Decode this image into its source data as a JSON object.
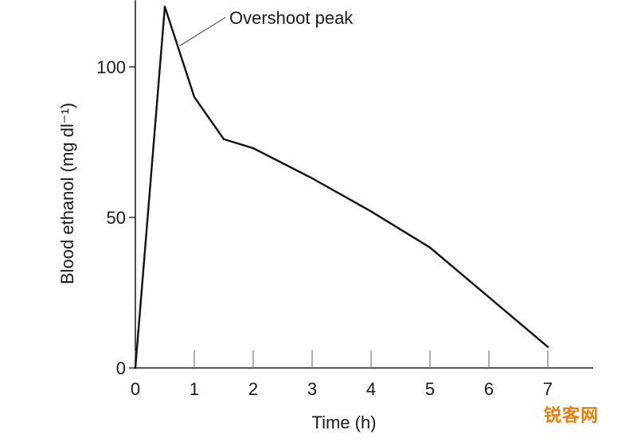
{
  "chart_data": {
    "type": "line",
    "title": "",
    "xlabel": "Time (h)",
    "ylabel": "Blood ethanol (mg dl⁻¹)",
    "xlim": [
      0,
      7.5
    ],
    "ylim": [
      0,
      120
    ],
    "xticks": [
      0,
      1,
      2,
      3,
      4,
      5,
      6,
      7
    ],
    "yticks": [
      0,
      50,
      100
    ],
    "grid": false,
    "series": [
      {
        "x": [
          0,
          0.5,
          1,
          1.5,
          2,
          3,
          4,
          5,
          7
        ],
        "y": [
          0,
          120,
          90,
          76,
          73,
          63,
          52,
          40,
          7
        ]
      }
    ],
    "annotations": [
      {
        "text": "Overshoot peak",
        "x": 0.75,
        "y": 107
      }
    ]
  },
  "watermark": "锐客网"
}
